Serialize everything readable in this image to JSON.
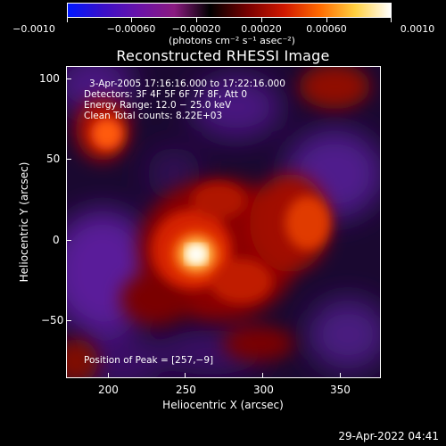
{
  "colorbar": {
    "tick_labels": [
      "−0.0010",
      "−0.00060",
      "−0.00020",
      "0.00020",
      "0.00060",
      "0.0010"
    ],
    "units": "(photons cm⁻² s⁻¹ asec⁻²)",
    "range": [
      -0.001,
      0.001
    ],
    "colors": [
      "#0018ff",
      "#3a10c8",
      "#6a12a8",
      "#8a1a80",
      "#000000",
      "#7a0000",
      "#d01800",
      "#ff6a00",
      "#ffd040",
      "#ffffff"
    ]
  },
  "plot": {
    "title": "Reconstructed RHESSI Image",
    "xlabel": "Heliocentric X (arcsec)",
    "ylabel": "Heliocentric Y (arcsec)",
    "xlim": [
      175,
      370
    ],
    "ylim": [
      -87,
      110
    ],
    "x_ticks": [
      "200",
      "250",
      "300",
      "350"
    ],
    "y_ticks": [
      "100",
      "50",
      "0",
      "−50"
    ],
    "info_lines": [
      "3-Apr-2005 17:16:16.000 to 17:22:16.000",
      "Detectors: 3F 4F 5F 6F 7F 8F, Att 0",
      "Energy Range: 12.0 − 25.0 keV",
      "Clean     Total counts: 8.22E+03"
    ],
    "peak_label": "Position of Peak = [257,−9]",
    "peak_position": [
      257,
      -9
    ]
  },
  "footer": {
    "timestamp": "29-Apr-2022 04:41"
  }
}
